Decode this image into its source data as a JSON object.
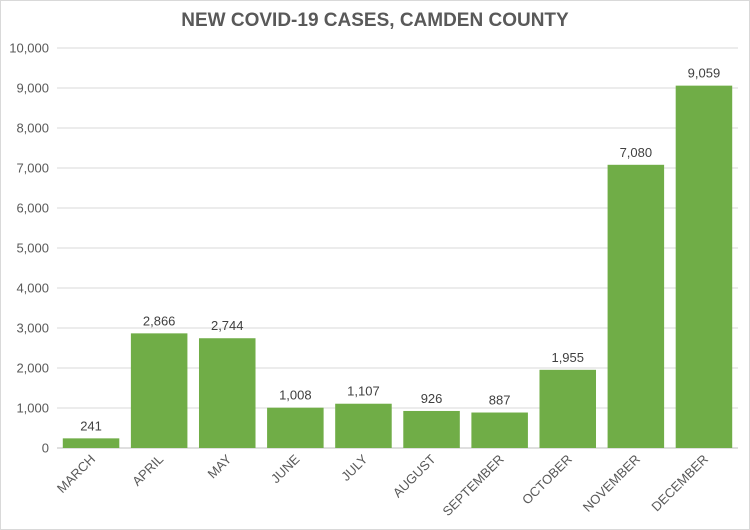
{
  "chart_data": {
    "type": "bar",
    "title": "NEW COVID-19 CASES, CAMDEN COUNTY",
    "xlabel": "",
    "ylabel": "",
    "categories": [
      "MARCH",
      "APRIL",
      "MAY",
      "JUNE",
      "JULY",
      "AUGUST",
      "SEPTEMBER",
      "OCTOBER",
      "NOVEMBER",
      "DECEMBER"
    ],
    "values": [
      241,
      2866,
      2744,
      1008,
      1107,
      926,
      887,
      1955,
      7080,
      9059
    ],
    "value_labels": [
      "241",
      "2,866",
      "2,744",
      "1,008",
      "1,107",
      "926",
      "887",
      "1,955",
      "7,080",
      "9,059"
    ],
    "ylim": [
      0,
      10000
    ],
    "y_ticks": [
      0,
      1000,
      2000,
      3000,
      4000,
      5000,
      6000,
      7000,
      8000,
      9000,
      10000
    ],
    "y_tick_labels": [
      "0",
      "1,000",
      "2,000",
      "3,000",
      "4,000",
      "5,000",
      "6,000",
      "7,000",
      "8,000",
      "9,000",
      "10,000"
    ],
    "bar_color": "#70ad47",
    "grid": true,
    "legend": "none"
  }
}
